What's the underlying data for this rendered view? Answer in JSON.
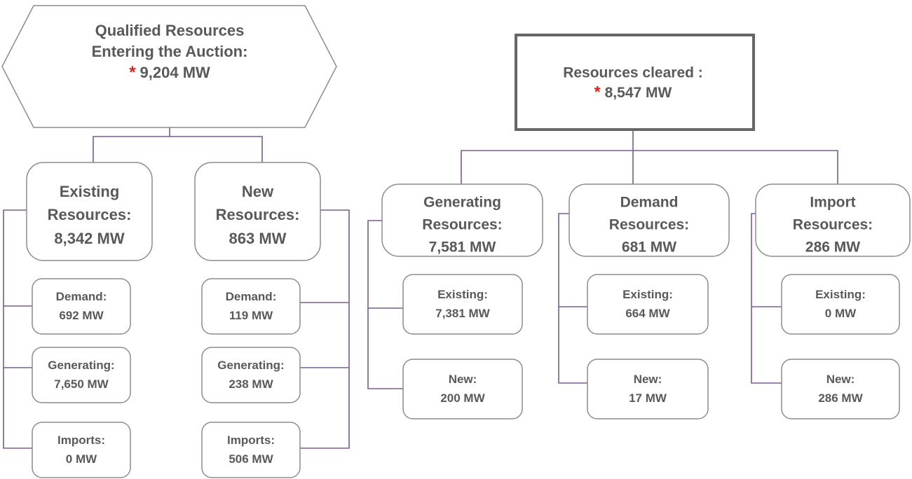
{
  "left_tree": {
    "root": {
      "lines": [
        "Qualified Resources",
        "Entering the Auction:"
      ],
      "marker": "*",
      "value": "9,204 MW"
    },
    "groups": [
      {
        "lines": [
          "Existing",
          "Resources:"
        ],
        "value": "8,342 MW",
        "items": [
          {
            "label": "Demand:",
            "value": "692 MW"
          },
          {
            "label": "Generating:",
            "value": "7,650 MW"
          },
          {
            "label": "Imports:",
            "value": "0 MW"
          }
        ]
      },
      {
        "lines": [
          "New",
          "Resources:"
        ],
        "value": "863 MW",
        "items": [
          {
            "label": "Demand:",
            "value": "119 MW"
          },
          {
            "label": "Generating:",
            "value": "238 MW"
          },
          {
            "label": "Imports:",
            "value": "506 MW"
          }
        ]
      }
    ]
  },
  "right_tree": {
    "root": {
      "lines": [
        "Resources cleared :"
      ],
      "marker": "*",
      "value": "8,547 MW"
    },
    "groups": [
      {
        "lines": [
          "Generating",
          "Resources:"
        ],
        "value": "7,581 MW",
        "items": [
          {
            "label": "Existing:",
            "value": "7,381 MW"
          },
          {
            "label": "New:",
            "value": "200 MW"
          }
        ]
      },
      {
        "lines": [
          "Demand",
          "Resources:"
        ],
        "value": "681 MW",
        "items": [
          {
            "label": "Existing:",
            "value": "664 MW"
          },
          {
            "label": "New:",
            "value": "17 MW"
          }
        ]
      },
      {
        "lines": [
          "Import",
          "Resources:"
        ],
        "value": "286 MW",
        "items": [
          {
            "label": "Existing:",
            "value": "0 MW"
          },
          {
            "label": "New:",
            "value": "286 MW"
          }
        ]
      }
    ]
  }
}
